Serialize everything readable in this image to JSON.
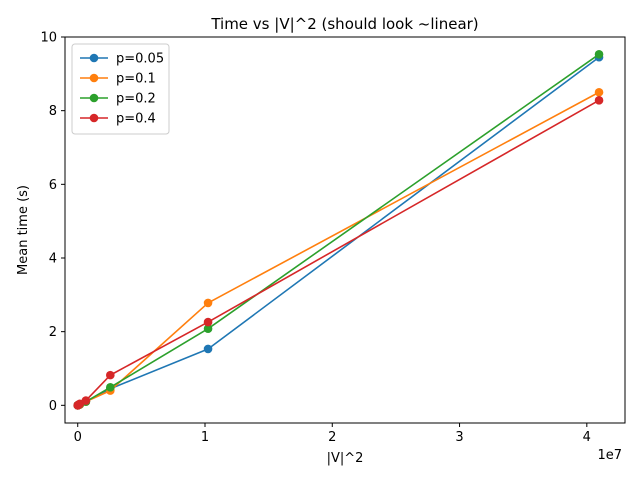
{
  "chart_data": {
    "type": "line",
    "title": "Time vs |V|^2 (should look ~linear)",
    "xlabel": "|V|^2",
    "ylabel": "Mean time (s)",
    "x_offset_label": "1e7",
    "xlim": [
      -1.0,
      43.0
    ],
    "ylim": [
      -0.48,
      10.0
    ],
    "x_ticks": [
      0,
      1,
      2,
      3,
      4
    ],
    "x_tick_labels": [
      "0",
      "1",
      "2",
      "3",
      "4"
    ],
    "y_ticks": [
      0,
      2,
      4,
      6,
      8,
      10
    ],
    "y_tick_labels": [
      "0",
      "2",
      "4",
      "6",
      "8",
      "10"
    ],
    "grid": false,
    "legend_position": "top-left",
    "x": [
      0.0,
      0.01,
      0.04,
      0.16,
      0.64,
      2.56,
      10.24,
      40.96
    ],
    "series": [
      {
        "name": "p=0.05",
        "color": "#1f77b4",
        "values": [
          0.0,
          0.0,
          0.01,
          0.02,
          0.1,
          0.45,
          1.53,
          9.45
        ]
      },
      {
        "name": "p=0.1",
        "color": "#ff7f0e",
        "values": [
          0.0,
          0.0,
          0.01,
          0.02,
          0.1,
          0.4,
          2.78,
          8.5
        ]
      },
      {
        "name": "p=0.2",
        "color": "#2ca02c",
        "values": [
          0.0,
          0.0,
          0.01,
          0.03,
          0.1,
          0.49,
          2.08,
          9.53
        ]
      },
      {
        "name": "p=0.4",
        "color": "#d62728",
        "values": [
          0.0,
          0.0,
          0.01,
          0.04,
          0.13,
          0.82,
          2.26,
          8.28
        ]
      }
    ]
  }
}
